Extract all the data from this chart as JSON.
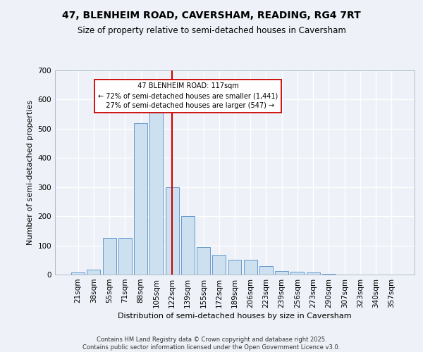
{
  "title_line1": "47, BLENHEIM ROAD, CAVERSHAM, READING, RG4 7RT",
  "title_line2": "Size of property relative to semi-detached houses in Caversham",
  "xlabel": "Distribution of semi-detached houses by size in Caversham",
  "ylabel": "Number of semi-detached properties",
  "categories": [
    "21sqm",
    "38sqm",
    "55sqm",
    "71sqm",
    "88sqm",
    "105sqm",
    "122sqm",
    "139sqm",
    "155sqm",
    "172sqm",
    "189sqm",
    "206sqm",
    "223sqm",
    "239sqm",
    "256sqm",
    "273sqm",
    "290sqm",
    "307sqm",
    "323sqm",
    "340sqm",
    "357sqm"
  ],
  "values": [
    8,
    18,
    125,
    125,
    520,
    580,
    300,
    200,
    95,
    68,
    50,
    50,
    28,
    12,
    10,
    7,
    2,
    1,
    1,
    1,
    1
  ],
  "bar_color": "#cce0f0",
  "bar_edge_color": "#6699cc",
  "property_label": "47 BLENHEIM ROAD: 117sqm",
  "smaller_pct": "72%",
  "smaller_count": "1,441",
  "larger_pct": "27%",
  "larger_count": "547",
  "vline_color": "#cc0000",
  "vline_x": 6.0,
  "annotation_box_color": "#cc0000",
  "background_color": "#eef2f8",
  "grid_color": "#ffffff",
  "footnote": "Contains HM Land Registry data © Crown copyright and database right 2025.\nContains public sector information licensed under the Open Government Licence v3.0.",
  "ylim": [
    0,
    700
  ],
  "yticks": [
    0,
    100,
    200,
    300,
    400,
    500,
    600,
    700
  ]
}
